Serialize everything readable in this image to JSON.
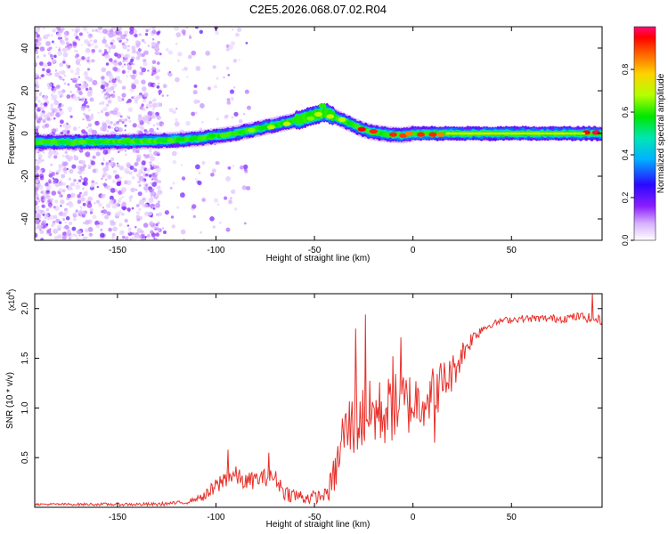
{
  "title": "C2E5.2026.068.07.02.R04",
  "chart_data": [
    {
      "type": "heatmap",
      "name": "spectrogram",
      "xlabel": "Height of straight line (km)",
      "ylabel": "Frequency (Hz)",
      "xlim": [
        -192,
        96
      ],
      "ylim": [
        -50,
        50
      ],
      "xticks": [
        -150,
        -100,
        -50,
        0,
        50
      ],
      "yticks": [
        -40,
        -20,
        0,
        20,
        40
      ],
      "colorbar": {
        "label": "Normalized spectral amplitude",
        "range": [
          0,
          1
        ],
        "ticks": [
          "0.0",
          "0.2",
          "0.4",
          "0.6",
          "0.8"
        ],
        "tick_values": [
          0.0,
          0.2,
          0.4,
          0.6,
          0.8
        ]
      },
      "ridge": {
        "x": [
          -192,
          -160,
          -130,
          -110,
          -90,
          -75,
          -60,
          -50,
          -45,
          -40,
          -33,
          -26,
          -20,
          -12,
          -5,
          0,
          10,
          30,
          60,
          96
        ],
        "y": [
          -4,
          -4,
          -3.5,
          -2.5,
          0,
          3,
          6,
          8.5,
          10,
          8,
          5,
          2,
          0.5,
          -0.5,
          -0.8,
          0,
          0,
          0,
          0,
          0
        ]
      }
    },
    {
      "type": "line",
      "name": "snr",
      "xlabel": "Height of straight line (km)",
      "ylabel": "SNR (10 * v/v)",
      "ylabel_scale": "(x10",
      "ylabel_exponent": "4",
      "ylabel_scale_close": ")",
      "xlim": [
        -192,
        96
      ],
      "ylim": [
        0,
        2.15
      ],
      "xticks": [
        -150,
        -100,
        -50,
        0,
        50
      ],
      "yticks": [
        "0.5",
        "1.0",
        "1.5",
        "2.0"
      ],
      "ytick_values": [
        0.5,
        1.0,
        1.5,
        2.0
      ],
      "color": "#e8302a",
      "envelope": {
        "x": [
          -192,
          -130,
          -115,
          -105,
          -100,
          -95,
          -90,
          -85,
          -80,
          -75,
          -70,
          -65,
          -60,
          -55,
          -50,
          -45,
          -42,
          -38,
          -36,
          -33,
          -30,
          -25,
          -20,
          -15,
          -10,
          -5,
          0,
          5,
          10,
          15,
          20,
          25,
          30,
          35,
          45,
          55,
          65,
          75,
          85,
          96
        ],
        "y": [
          0.03,
          0.03,
          0.05,
          0.12,
          0.2,
          0.3,
          0.32,
          0.25,
          0.28,
          0.3,
          0.3,
          0.15,
          0.12,
          0.1,
          0.1,
          0.12,
          0.2,
          0.45,
          0.7,
          0.8,
          0.85,
          0.9,
          0.95,
          0.95,
          1.0,
          1.05,
          1.05,
          1.1,
          1.15,
          1.25,
          1.35,
          1.55,
          1.7,
          1.8,
          1.88,
          1.9,
          1.9,
          1.9,
          1.92,
          1.88
        ]
      },
      "noise": {
        "x": [
          -192,
          -110,
          -100,
          -60,
          -45,
          -38,
          -30,
          -20,
          -5,
          15,
          30,
          40,
          96
        ],
        "amplitude": [
          0.01,
          0.02,
          0.1,
          0.08,
          0.06,
          0.25,
          0.35,
          0.35,
          0.35,
          0.25,
          0.08,
          0.03,
          0.05
        ]
      },
      "spikes": [
        {
          "x": -94,
          "y": 0.58
        },
        {
          "x": -73,
          "y": 0.55
        },
        {
          "x": -29,
          "y": 1.8
        },
        {
          "x": -24,
          "y": 1.94
        },
        {
          "x": -10,
          "y": 1.52
        },
        {
          "x": -6,
          "y": 1.71
        },
        {
          "x": 11,
          "y": 0.65
        },
        {
          "x": 91,
          "y": 2.15
        }
      ]
    }
  ]
}
